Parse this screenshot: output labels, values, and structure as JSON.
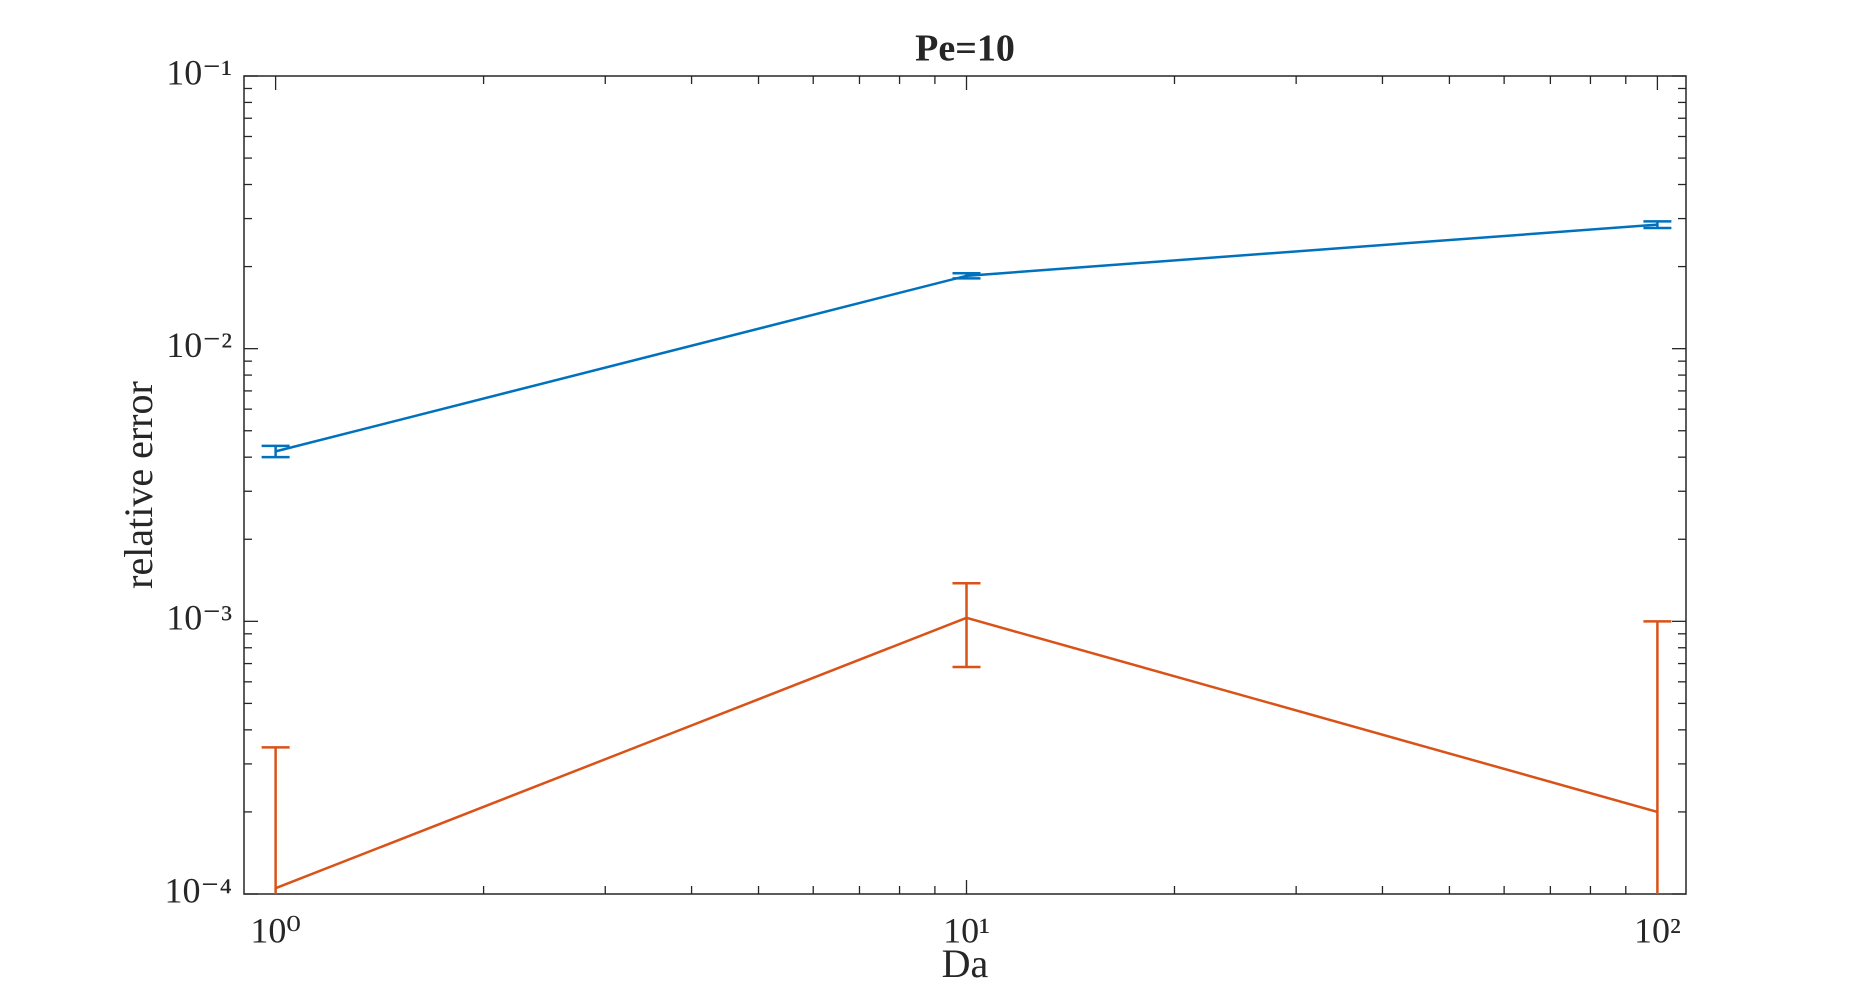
{
  "chart_data": {
    "type": "errorbar-line",
    "title": "Pe=10",
    "xlabel": "Da",
    "ylabel": "relative error",
    "xscale": "log",
    "yscale": "log",
    "box": true,
    "x": [
      1,
      10,
      100
    ],
    "series": [
      {
        "color": "#0072BD",
        "values": [
          0.0042,
          0.0185,
          0.0285
        ],
        "errors": [
          0.0002,
          0.0004,
          0.0008
        ]
      },
      {
        "color": "#D95319",
        "values": [
          0.000105,
          0.00103,
          0.0002
        ],
        "errors": [
          0.00024,
          0.00035,
          0.0008
        ]
      }
    ],
    "xlim": [
      0.9,
      110
    ],
    "xticks": [
      {
        "value": 1,
        "label": "10⁰"
      },
      {
        "value": 10,
        "label": "10¹"
      },
      {
        "value": 100,
        "label": "10²"
      }
    ],
    "xminorticks": [
      2,
      3,
      4,
      5,
      6,
      7,
      8,
      9,
      20,
      30,
      40,
      50,
      60,
      70,
      80,
      90
    ],
    "ylim": [
      0.0001,
      0.1
    ],
    "yticks": [
      {
        "value": 0.0001,
        "label": "10⁻⁴"
      },
      {
        "value": 0.001,
        "label": "10⁻³"
      },
      {
        "value": 0.01,
        "label": "10⁻²"
      },
      {
        "value": 0.1,
        "label": "10⁻¹"
      }
    ],
    "yminorticks": [
      0.0002,
      0.0003,
      0.0004,
      0.0005,
      0.0006,
      0.0007,
      0.0008,
      0.0009,
      0.002,
      0.003,
      0.004,
      0.005,
      0.006,
      0.007,
      0.008,
      0.009,
      0.02,
      0.03,
      0.04,
      0.05,
      0.06,
      0.07,
      0.08,
      0.09
    ]
  }
}
